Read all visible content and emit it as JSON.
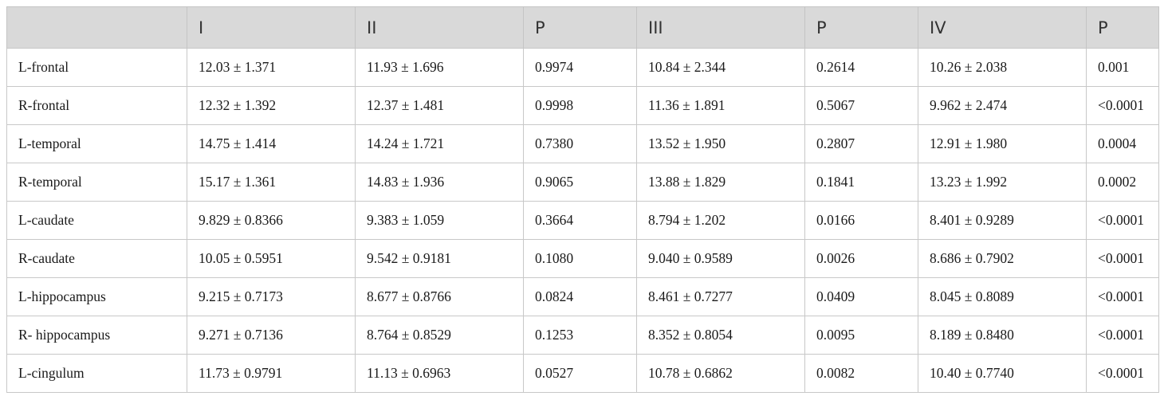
{
  "table": {
    "headers": [
      "",
      "I",
      "II",
      "P",
      "III",
      "P",
      "IV",
      "P"
    ],
    "rows": [
      [
        "L-frontal",
        "12.03 ± 1.371",
        "11.93 ± 1.696",
        "0.9974",
        "10.84 ± 2.344",
        "0.2614",
        "10.26 ± 2.038",
        "0.001"
      ],
      [
        "R-frontal",
        "12.32 ± 1.392",
        "12.37 ± 1.481",
        "0.9998",
        "11.36 ± 1.891",
        "0.5067",
        "9.962 ± 2.474",
        "<0.0001"
      ],
      [
        "L-temporal",
        "14.75 ± 1.414",
        "14.24 ± 1.721",
        "0.7380",
        "13.52 ± 1.950",
        "0.2807",
        "12.91 ± 1.980",
        "0.0004"
      ],
      [
        "R-temporal",
        "15.17 ± 1.361",
        "14.83 ± 1.936",
        "0.9065",
        "13.88 ± 1.829",
        "0.1841",
        "13.23 ± 1.992",
        "0.0002"
      ],
      [
        "L-caudate",
        "9.829 ± 0.8366",
        "9.383 ± 1.059",
        "0.3664",
        "8.794 ± 1.202",
        "0.0166",
        "8.401 ± 0.9289",
        "<0.0001"
      ],
      [
        "R-caudate",
        "10.05 ± 0.5951",
        "9.542 ± 0.9181",
        "0.1080",
        "9.040 ± 0.9589",
        "0.0026",
        "8.686 ± 0.7902",
        "<0.0001"
      ],
      [
        "L-hippocampus",
        "9.215 ± 0.7173",
        "8.677 ± 0.8766",
        "0.0824",
        "8.461 ± 0.7277",
        "0.0409",
        "8.045 ± 0.8089",
        "<0.0001"
      ],
      [
        "R- hippocampus",
        "9.271 ± 0.7136",
        "8.764 ± 0.8529",
        "0.1253",
        "8.352 ± 0.8054",
        "0.0095",
        "8.189 ± 0.8480",
        "<0.0001"
      ],
      [
        "L-cingulum",
        "11.73 ± 0.9791",
        "11.13 ± 0.6963",
        "0.0527",
        "10.78 ± 0.6862",
        "0.0082",
        "10.40 ± 0.7740",
        "<0.0001"
      ]
    ]
  }
}
